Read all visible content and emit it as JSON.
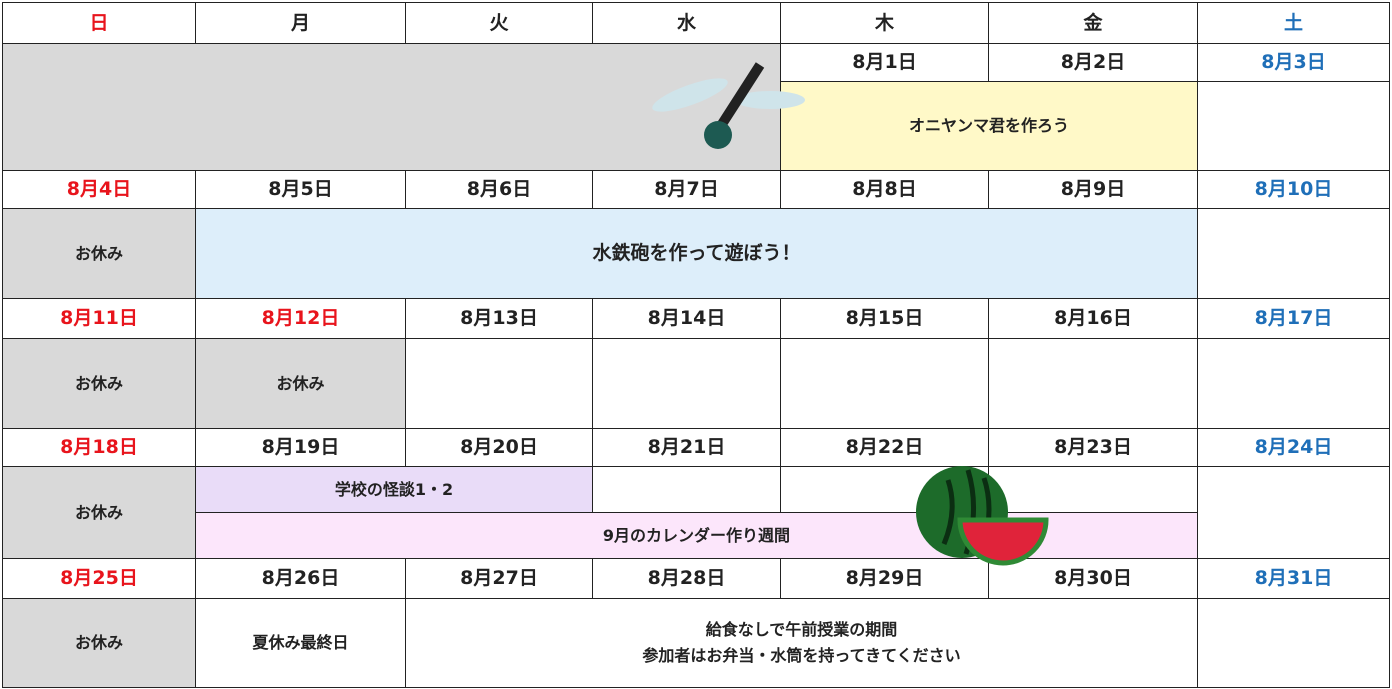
{
  "weekdays": [
    "日",
    "月",
    "火",
    "水",
    "木",
    "金",
    "土"
  ],
  "weeks": [
    {
      "dates": [
        "8月1日",
        "8月2日",
        "8月3日"
      ],
      "events": [
        "オニヤンマ君を作ろう"
      ]
    },
    {
      "dates": [
        "8月4日",
        "8月5日",
        "8月6日",
        "8月7日",
        "8月8日",
        "8月9日",
        "8月10日"
      ],
      "events": [
        "お休み",
        "水鉄砲を作って遊ぼう！"
      ]
    },
    {
      "dates": [
        "8月11日",
        "8月12日",
        "8月13日",
        "8月14日",
        "8月15日",
        "8月16日",
        "8月17日"
      ],
      "events": [
        "お休み",
        "お休み"
      ]
    },
    {
      "dates": [
        "8月18日",
        "8月19日",
        "8月20日",
        "8月21日",
        "8月22日",
        "8月23日",
        "8月24日"
      ],
      "events": [
        "お休み",
        "学校の怪談1・2",
        "9月のカレンダー作り週間"
      ]
    },
    {
      "dates": [
        "8月25日",
        "8月26日",
        "8月27日",
        "8月28日",
        "8月29日",
        "8月30日",
        "8月31日"
      ],
      "events": [
        "お休み",
        "夏休み最終日",
        [
          "給食なしで午前授業の期間",
          "参加者はお弁当・水筒を持ってきてください"
        ]
      ]
    }
  ]
}
